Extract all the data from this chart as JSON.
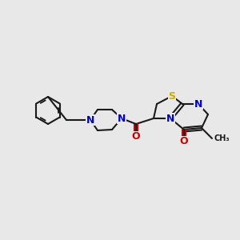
{
  "background_color": "#e8e8e8",
  "bond_color": "#1a1a1a",
  "bond_width": 1.5,
  "atom_colors": {
    "C": "#1a1a1a",
    "N": "#0000cc",
    "O": "#cc0000",
    "S": "#ccaa00",
    "H": "#1a1a1a"
  },
  "font_size_atom": 9,
  "font_size_methyl": 8
}
